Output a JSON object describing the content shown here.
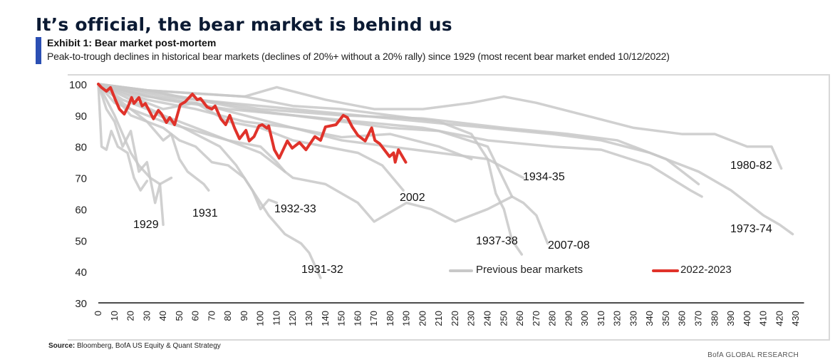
{
  "header": {
    "title": "It’s official, the bear market is behind us",
    "exhibit": "Exhibit 1: Bear market post-mortem",
    "subtitle": "Peak-to-trough declines in historical bear markets (declines of 20%+ without a 20% rally) since 1929 (most recent bear market ended 10/12/2022)"
  },
  "footer": {
    "source_label": "Source:",
    "source_text": "Bloomberg, BofA US Equity & Quant Strategy",
    "brand": "BofA GLOBAL RESEARCH"
  },
  "chart_data": {
    "type": "line",
    "title": "",
    "xlabel": "",
    "ylabel": "",
    "xlim": [
      0,
      435
    ],
    "ylim": [
      30,
      100
    ],
    "xticks": [
      0,
      10,
      20,
      30,
      40,
      50,
      60,
      70,
      80,
      90,
      100,
      110,
      120,
      130,
      140,
      150,
      160,
      170,
      180,
      190,
      200,
      210,
      220,
      230,
      240,
      250,
      260,
      270,
      280,
      290,
      300,
      310,
      320,
      330,
      340,
      350,
      360,
      370,
      380,
      390,
      400,
      410,
      420,
      430
    ],
    "yticks": [
      30,
      40,
      50,
      60,
      70,
      80,
      90,
      100
    ],
    "grid": false,
    "legend": {
      "placement": "bottom-center",
      "entries": [
        "Previous bear markets",
        "2022-2023"
      ]
    },
    "colors": {
      "previous": "#c8c8c8",
      "current": "#e0322a"
    },
    "annotations": [
      "1929",
      "1931",
      "1932-33",
      "1931-32",
      "2002",
      "1934-35",
      "1937-38",
      "2007-08",
      "1980-82",
      "1973-74"
    ],
    "previous_series": [
      {
        "label": "1929",
        "points": [
          [
            0,
            100
          ],
          [
            5,
            92
          ],
          [
            10,
            88
          ],
          [
            15,
            80
          ],
          [
            20,
            85
          ],
          [
            25,
            72
          ],
          [
            30,
            75
          ],
          [
            35,
            62
          ],
          [
            38,
            68
          ],
          [
            40,
            55
          ]
        ]
      },
      {
        "points": [
          [
            0,
            100
          ],
          [
            2,
            80
          ],
          [
            5,
            79
          ],
          [
            8,
            85
          ],
          [
            12,
            80
          ],
          [
            18,
            78
          ],
          [
            22,
            70
          ],
          [
            26,
            66
          ],
          [
            30,
            69
          ]
        ]
      },
      {
        "label": "1931",
        "points": [
          [
            0,
            100
          ],
          [
            10,
            96
          ],
          [
            20,
            90
          ],
          [
            30,
            88
          ],
          [
            40,
            82
          ],
          [
            45,
            84
          ],
          [
            50,
            76
          ],
          [
            55,
            72
          ],
          [
            60,
            70
          ],
          [
            65,
            68
          ],
          [
            68,
            66
          ]
        ]
      },
      {
        "label": "1932-33",
        "points": [
          [
            0,
            100
          ],
          [
            10,
            94
          ],
          [
            20,
            92
          ],
          [
            30,
            88
          ],
          [
            40,
            86
          ],
          [
            50,
            82
          ],
          [
            60,
            80
          ],
          [
            70,
            75
          ],
          [
            80,
            74
          ],
          [
            90,
            70
          ],
          [
            95,
            66
          ],
          [
            100,
            60
          ],
          [
            105,
            63
          ],
          [
            110,
            62
          ]
        ]
      },
      {
        "label": "1931-32",
        "points": [
          [
            0,
            100
          ],
          [
            15,
            95
          ],
          [
            30,
            92
          ],
          [
            45,
            88
          ],
          [
            60,
            84
          ],
          [
            75,
            80
          ],
          [
            85,
            74
          ],
          [
            95,
            66
          ],
          [
            105,
            58
          ],
          [
            115,
            52
          ],
          [
            125,
            49
          ],
          [
            130,
            46
          ],
          [
            137,
            38
          ]
        ]
      },
      {
        "label": "2002",
        "points": [
          [
            0,
            100
          ],
          [
            20,
            96
          ],
          [
            40,
            92
          ],
          [
            60,
            94
          ],
          [
            80,
            88
          ],
          [
            100,
            86
          ],
          [
            120,
            82
          ],
          [
            140,
            80
          ],
          [
            160,
            78
          ],
          [
            175,
            74
          ],
          [
            188,
            66
          ]
        ]
      },
      {
        "points": [
          [
            0,
            100
          ],
          [
            20,
            92
          ],
          [
            40,
            88
          ],
          [
            60,
            85
          ],
          [
            80,
            82
          ],
          [
            100,
            78
          ],
          [
            120,
            70
          ],
          [
            140,
            68
          ],
          [
            160,
            62
          ],
          [
            170,
            56
          ],
          [
            190,
            62
          ],
          [
            205,
            60
          ],
          [
            220,
            56
          ],
          [
            240,
            60
          ],
          [
            255,
            64
          ]
        ]
      },
      {
        "label": "1937-38",
        "points": [
          [
            0,
            100
          ],
          [
            30,
            98
          ],
          [
            60,
            97
          ],
          [
            90,
            96
          ],
          [
            120,
            93
          ],
          [
            150,
            92
          ],
          [
            180,
            90
          ],
          [
            210,
            88
          ],
          [
            230,
            84
          ],
          [
            240,
            76
          ],
          [
            245,
            65
          ],
          [
            250,
            60
          ],
          [
            255,
            50
          ],
          [
            261,
            45.5
          ]
        ]
      },
      {
        "label": "2007-08",
        "points": [
          [
            0,
            100
          ],
          [
            30,
            98
          ],
          [
            60,
            95
          ],
          [
            90,
            92
          ],
          [
            120,
            90
          ],
          [
            150,
            88
          ],
          [
            180,
            86
          ],
          [
            210,
            85
          ],
          [
            240,
            80
          ],
          [
            255,
            64
          ],
          [
            262,
            62
          ],
          [
            270,
            58
          ],
          [
            277,
            49
          ]
        ]
      },
      {
        "label": "1934-35",
        "points": [
          [
            0,
            100
          ],
          [
            30,
            96
          ],
          [
            60,
            94
          ],
          [
            90,
            90
          ],
          [
            120,
            86
          ],
          [
            150,
            82
          ],
          [
            180,
            80
          ],
          [
            210,
            78
          ],
          [
            240,
            76
          ],
          [
            262,
            70
          ]
        ]
      },
      {
        "label": "1980-82",
        "points": [
          [
            0,
            100
          ],
          [
            30,
            98
          ],
          [
            60,
            97
          ],
          [
            90,
            96
          ],
          [
            110,
            99
          ],
          [
            140,
            95
          ],
          [
            170,
            92
          ],
          [
            200,
            92
          ],
          [
            230,
            94
          ],
          [
            250,
            96
          ],
          [
            270,
            94
          ],
          [
            300,
            90
          ],
          [
            330,
            86
          ],
          [
            360,
            84
          ],
          [
            380,
            84
          ],
          [
            400,
            80
          ],
          [
            415,
            80
          ],
          [
            421,
            73
          ]
        ]
      },
      {
        "label": "1973-74",
        "points": [
          [
            0,
            100
          ],
          [
            40,
            96
          ],
          [
            80,
            94
          ],
          [
            120,
            92
          ],
          [
            160,
            90
          ],
          [
            200,
            88
          ],
          [
            240,
            86
          ],
          [
            280,
            84
          ],
          [
            310,
            82
          ],
          [
            340,
            78
          ],
          [
            370,
            72
          ],
          [
            390,
            66
          ],
          [
            410,
            58
          ],
          [
            420,
            55
          ],
          [
            428,
            52
          ]
        ]
      },
      {
        "points": [
          [
            0,
            100
          ],
          [
            40,
            95
          ],
          [
            80,
            92
          ],
          [
            120,
            90
          ],
          [
            160,
            88
          ],
          [
            200,
            86
          ],
          [
            240,
            82
          ],
          [
            280,
            80
          ],
          [
            310,
            79
          ],
          [
            340,
            74
          ],
          [
            365,
            66
          ],
          [
            372,
            64
          ]
        ]
      },
      {
        "points": [
          [
            0,
            100
          ],
          [
            50,
            96
          ],
          [
            100,
            92
          ],
          [
            150,
            90
          ],
          [
            200,
            89
          ],
          [
            250,
            86
          ],
          [
            290,
            84
          ],
          [
            320,
            82
          ],
          [
            350,
            76
          ],
          [
            370,
            68
          ]
        ]
      },
      {
        "points": [
          [
            0,
            100
          ],
          [
            30,
            95
          ],
          [
            60,
            92
          ],
          [
            90,
            88
          ],
          [
            120,
            86
          ],
          [
            150,
            83
          ],
          [
            180,
            84
          ],
          [
            210,
            80
          ],
          [
            230,
            76
          ]
        ]
      },
      {
        "points": [
          [
            0,
            100
          ],
          [
            5,
            95
          ],
          [
            10,
            90
          ],
          [
            15,
            84
          ],
          [
            20,
            78
          ],
          [
            25,
            74
          ],
          [
            32,
            70
          ],
          [
            38,
            68
          ],
          [
            45,
            70
          ]
        ]
      },
      {
        "points": [
          [
            0,
            100
          ],
          [
            20,
            95
          ],
          [
            40,
            90
          ],
          [
            60,
            86
          ],
          [
            80,
            82
          ],
          [
            100,
            80
          ],
          [
            110,
            75
          ],
          [
            115,
            72
          ]
        ]
      }
    ],
    "current_series": {
      "name": "2022-2023",
      "points": [
        [
          0,
          100
        ],
        [
          2,
          98.9
        ],
        [
          5,
          97.7
        ],
        [
          7.5,
          98.9
        ],
        [
          10.5,
          95
        ],
        [
          13,
          92
        ],
        [
          16,
          90.4
        ],
        [
          18.5,
          93
        ],
        [
          20.5,
          95.7
        ],
        [
          22,
          93.8
        ],
        [
          25,
          95.7
        ],
        [
          27,
          93
        ],
        [
          29,
          93.8
        ],
        [
          34,
          88.9
        ],
        [
          37,
          91.6
        ],
        [
          39,
          90.4
        ],
        [
          42,
          87.7
        ],
        [
          44,
          89.3
        ],
        [
          47,
          87
        ],
        [
          50.5,
          93.4
        ],
        [
          53.5,
          94.3
        ],
        [
          58,
          96.8
        ],
        [
          61,
          95
        ],
        [
          63,
          95.4
        ],
        [
          67,
          92.7
        ],
        [
          70,
          92
        ],
        [
          72,
          93
        ],
        [
          75.5,
          88.9
        ],
        [
          78.5,
          87
        ],
        [
          81,
          90
        ],
        [
          84,
          85.9
        ],
        [
          87,
          82.5
        ],
        [
          91,
          85.2
        ],
        [
          93,
          81.8
        ],
        [
          96,
          83.2
        ],
        [
          99,
          86.6
        ],
        [
          101,
          87
        ],
        [
          104,
          85.9
        ],
        [
          105,
          86.6
        ],
        [
          108.5,
          79
        ],
        [
          111.5,
          76.3
        ],
        [
          116.5,
          81.8
        ],
        [
          119.5,
          79.5
        ],
        [
          124,
          81.3
        ],
        [
          128,
          79
        ],
        [
          133.5,
          83.2
        ],
        [
          137,
          82
        ],
        [
          140,
          86.3
        ],
        [
          146.5,
          87
        ],
        [
          151,
          90
        ],
        [
          153.5,
          89.3
        ],
        [
          156.5,
          86.3
        ],
        [
          160,
          83.6
        ],
        [
          164.5,
          81.8
        ],
        [
          168.5,
          86
        ],
        [
          170.5,
          82
        ],
        [
          173.5,
          80.9
        ],
        [
          179.5,
          76.8
        ],
        [
          182,
          78
        ],
        [
          183,
          75
        ],
        [
          185,
          79
        ],
        [
          189.5,
          75
        ]
      ]
    }
  }
}
